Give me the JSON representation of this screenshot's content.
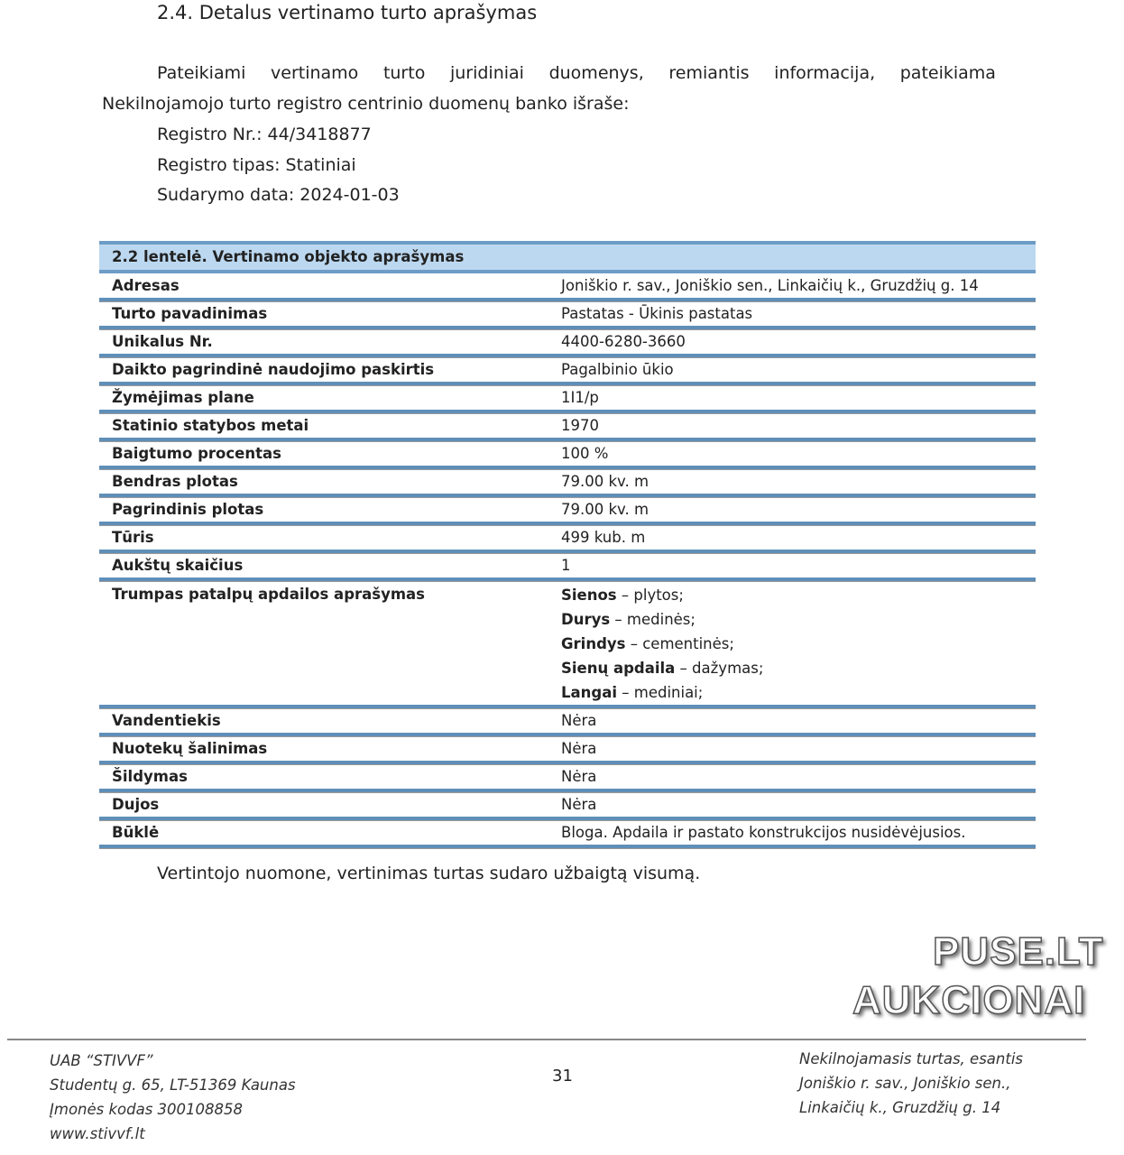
{
  "section_title": "2.4. Detalus vertinamo turto aprašymas",
  "intro_line1_words": [
    "Pateikiami",
    "vertinamo",
    "turto",
    "juridiniai",
    "duomenys,",
    "remiantis",
    "informacija,",
    "pateikiama"
  ],
  "intro_line2": "Nekilnojamojo turto registro centrinio duomenų banko išraše:",
  "registry": [
    "Registro Nr.:  44/3418877",
    "Registro tipas: Statiniai",
    "Sudarymo data: 2024-01-03"
  ],
  "table": {
    "caption": "2.2 lentelė. Vertinamo objekto aprašymas",
    "rows": [
      {
        "key": "Adresas",
        "value": "Joniškio r. sav., Joniškio sen., Linkaičių k., Gruzdžių g. 14"
      },
      {
        "key": "Turto pavadinimas",
        "value": "Pastatas - Ūkinis pastatas"
      },
      {
        "key": "Unikalus Nr.",
        "value": "4400-6280-3660"
      },
      {
        "key": "Daikto pagrindinė naudojimo paskirtis",
        "value": "Pagalbinio ūkio"
      },
      {
        "key": "Žymėjimas plane",
        "value": "1I1/p"
      },
      {
        "key": "Statinio statybos metai",
        "value": "1970"
      },
      {
        "key": "Baigtumo procentas",
        "value": "100 %"
      },
      {
        "key": "Bendras plotas",
        "value": "79.00 kv. m"
      },
      {
        "key": "Pagrindinis plotas",
        "value": "79.00 kv. m"
      },
      {
        "key": "Tūris",
        "value": "499 kub. m"
      },
      {
        "key": "Aukštų skaičius",
        "value": "1"
      }
    ],
    "finish": {
      "key": "Trumpas patalpų apdailos aprašymas",
      "items": [
        {
          "label": "Sienos",
          "text": " – plytos;"
        },
        {
          "label": "Durys",
          "text": " – medinės;"
        },
        {
          "label": "Grindys",
          "text": " – cementinės;"
        },
        {
          "label": "Sienų apdaila",
          "text": " – dažymas;"
        },
        {
          "label": "Langai",
          "text": " – mediniai;"
        }
      ]
    },
    "rows2": [
      {
        "key": "Vandentiekis",
        "value": "Nėra"
      },
      {
        "key": "Nuotekų šalinimas",
        "value": "Nėra"
      },
      {
        "key": "Šildymas",
        "value": "Nėra"
      },
      {
        "key": "Dujos",
        "value": "Nėra"
      },
      {
        "key": "Būklė",
        "value": "Bloga. Apdaila ir pastato konstrukcijos nusidėvėjusios."
      }
    ]
  },
  "conclusion": "Vertintojo nuomone, vertinimas turtas sudaro užbaigtą visumą.",
  "footer": {
    "left": [
      "UAB “STIVVF”",
      "Studentų g. 65, LT-51369 Kaunas",
      "Įmonės kodas 300108858",
      "www.stivvf.lt"
    ],
    "page_number": "31",
    "right": [
      "Nekilnojamasis turtas, esantis",
      "Joniškio r. sav., Joniškio sen.,",
      "Linkaičių k., Gruzdžių g. 14"
    ]
  },
  "watermark": [
    "PUSE.LT",
    "AUKCIONAI"
  ]
}
